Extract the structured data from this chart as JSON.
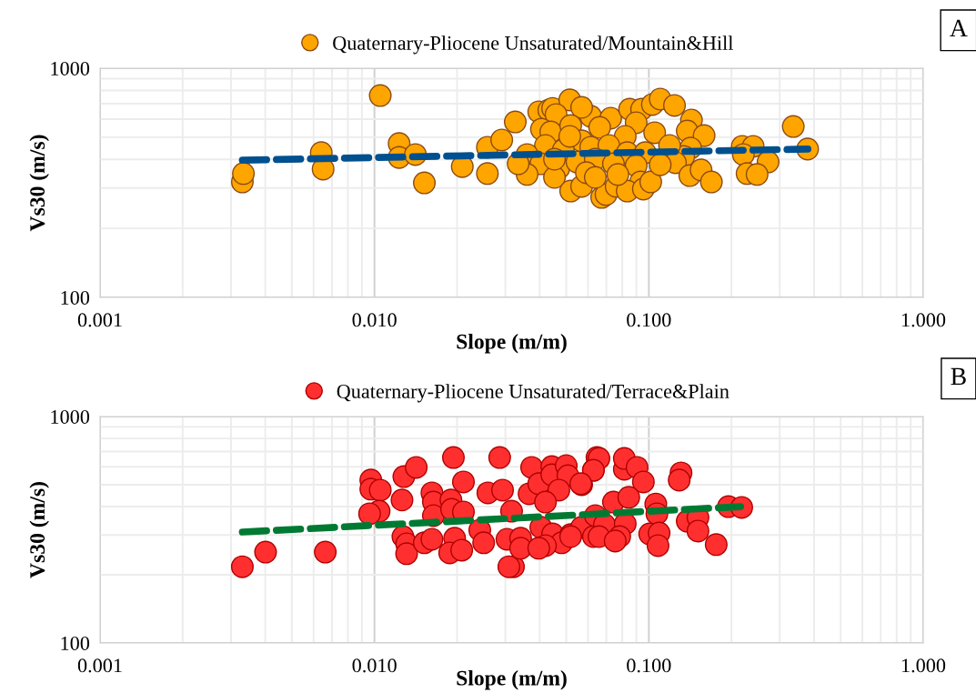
{
  "chart_data": [
    {
      "type": "scatter",
      "xlabel": "Slope (m/m)",
      "ylabel": "Vs30 (m/s)",
      "log": "xy",
      "grid": true,
      "legend": "top",
      "annotations": [
        "A"
      ],
      "xlim": [
        0.001,
        1
      ],
      "xticks": [
        {
          "value": 0.001,
          "label": "0.001"
        },
        {
          "value": 0.01,
          "label": "0.010"
        },
        {
          "value": 0.1,
          "label": "0.100"
        },
        {
          "value": 1,
          "label": "1.000"
        }
      ],
      "ylim": [
        100,
        1000
      ],
      "yticks": [
        100,
        1000
      ],
      "series": [
        {
          "name": "Quaternary-Pliocene Unsaturated/Mountain&Hill",
          "color": "#ffa500",
          "marker": "circle",
          "x": [
            0.0033,
            0.00333,
            0.0064,
            0.0065,
            0.0105,
            0.0123,
            0.0123,
            0.0141,
            0.0152,
            0.0209,
            0.0258,
            0.0258,
            0.0291,
            0.0326,
            0.0397,
            0.0432,
            0.0446,
            0.0515,
            0.0459,
            0.0614,
            0.0726,
            0.0851,
            0.0941,
            0.0569,
            0.0406,
            0.0439,
            0.0519,
            0.0662,
            0.0899,
            0.105,
            0.082,
            0.0569,
            0.042,
            0.0488,
            0.0614,
            0.0715,
            0.0834,
            0.097,
            0.036,
            0.0404,
            0.047,
            0.0547,
            0.0638,
            0.0743,
            0.0899,
            0.0933,
            0.036,
            0.0453,
            0.0519,
            0.0569,
            0.0673,
            0.0698,
            0.076,
            0.0834,
            0.0955,
            0.1016,
            0.0453,
            0.0334,
            0.0592,
            0.0771,
            0.0515,
            0.0638,
            0.103,
            0.11,
            0.124,
            0.143,
            0.138,
            0.159,
            0.142,
            0.134,
            0.119,
            0.125,
            0.11,
            0.141,
            0.155,
            0.169,
            0.219,
            0.24,
            0.221,
            0.272,
            0.228,
            0.248,
            0.336,
            0.379
          ],
          "values": [
            319,
            347,
            428,
            363,
            760,
            469,
            408,
            420,
            316,
            372,
            452,
            347,
            486,
            583,
            645,
            656,
            668,
            727,
            628,
            617,
            605,
            662,
            662,
            675,
            542,
            527,
            562,
            552,
            578,
            523,
            504,
            482,
            460,
            440,
            452,
            460,
            428,
            428,
            420,
            383,
            366,
            390,
            401,
            383,
            376,
            319,
            344,
            334,
            291,
            305,
            273,
            281,
            305,
            291,
            297,
            319,
            401,
            383,
            350,
            344,
            504,
            334,
            694,
            733,
            688,
            594,
            532,
            508,
            448,
            412,
            460,
            387,
            379,
            340,
            360,
            319,
            456,
            456,
            420,
            390,
            347,
            344,
            557,
            444
          ]
        },
        {
          "type": "line",
          "color": "#00508f",
          "line_style": "dashed",
          "x": [
            0.0033,
            0.38
          ],
          "values": [
            397,
            444
          ]
        }
      ]
    },
    {
      "type": "scatter",
      "xlabel": "Slope (m/m)",
      "ylabel": "Vs30 (m/s)",
      "log": "xy",
      "grid": true,
      "legend": "top",
      "annotations": [
        "B"
      ],
      "xlim": [
        0.001,
        1
      ],
      "xticks": [
        {
          "value": 0.001,
          "label": "0.001"
        },
        {
          "value": 0.01,
          "label": "0.010"
        },
        {
          "value": 0.1,
          "label": "0.100"
        },
        {
          "value": 1,
          "label": "1.000"
        }
      ],
      "ylim": [
        100,
        1000
      ],
      "yticks": [
        100,
        1000
      ],
      "series": [
        {
          "name": "Quaternary-Pliocene Unsaturated/Terrace&Plain",
          "color": "#ff2f2f",
          "marker": "circle",
          "x": [
            0.0033,
            0.00401,
            0.00662,
            0.0097,
            0.0097,
            0.0105,
            0.0104,
            0.0096,
            0.0128,
            0.0142,
            0.0126,
            0.0127,
            0.0131,
            0.0131,
            0.0152,
            0.0162,
            0.0162,
            0.0164,
            0.0164,
            0.0194,
            0.0211,
            0.019,
            0.0191,
            0.0211,
            0.0196,
            0.0188,
            0.0208,
            0.0242,
            0.025,
            0.0259,
            0.0286,
            0.0293,
            0.0316,
            0.0304,
            0.0321,
            0.0309,
            0.0341,
            0.0341,
            0.0374,
            0.0366,
            0.0397,
            0.0443,
            0.0443,
            0.05,
            0.0507,
            0.0569,
            0.047,
            0.042,
            0.0404,
            0.0446,
            0.0519,
            0.0481,
            0.042,
            0.0397,
            0.0569,
            0.0628,
            0.0647,
            0.0628,
            0.0658,
            0.0628,
            0.0814,
            0.0814,
            0.0906,
            0.0955,
            0.0565,
            0.0743,
            0.0845,
            0.0638,
            0.0689,
            0.082,
            0.0519,
            0.0658,
            0.0783,
            0.0754,
            0.106,
            0.107,
            0.1007,
            0.109,
            0.108,
            0.131,
            0.129,
            0.138,
            0.151,
            0.151,
            0.176,
            0.195,
            0.218
          ],
          "values": [
            217,
            252,
            252,
            524,
            478,
            473,
            382,
            372,
            543,
            596,
            428,
            295,
            274,
            248,
            277,
            287,
            460,
            419,
            365,
            659,
            514,
            428,
            389,
            379,
            290,
            250,
            257,
            315,
            277,
            460,
            659,
            473,
            382,
            287,
            217,
            217,
            290,
            262,
            596,
            456,
            505,
            601,
            553,
            607,
            548,
            500,
            473,
            419,
            324,
            303,
            301,
            277,
            269,
            262,
            324,
            295,
            659,
            579,
            653,
            579,
            585,
            653,
            596,
            514,
            505,
            419,
            440,
            365,
            333,
            336,
            295,
            295,
            295,
            282,
            411,
            372,
            303,
            306,
            269,
            564,
            524,
            345,
            358,
            312,
            272,
            400,
            397
          ]
        },
        {
          "type": "line",
          "color": "#007a33",
          "line_style": "dashed",
          "x": [
            0.0033,
            0.216
          ],
          "values": [
            309,
            400
          ]
        }
      ]
    }
  ]
}
